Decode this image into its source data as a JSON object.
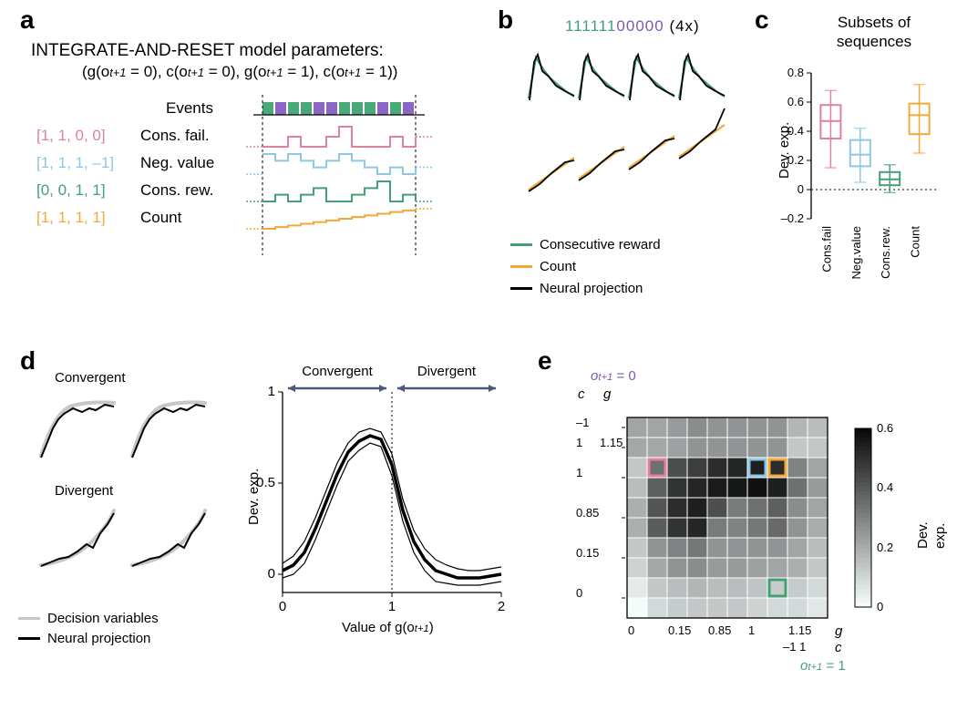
{
  "colors": {
    "pink": "#e0819f",
    "blue": "#8ec6e3",
    "green": "#459e76",
    "orange": "#f1a938",
    "purple": "#7c59b3",
    "eventGreen": "#4aa97a",
    "eventPurple": "#8a66c7",
    "black": "#000000",
    "gray": "#c7c7c7",
    "arrowBlue": "#4a5a78",
    "heatLight": "#f5fbfb",
    "heatDark": "#0a0a0a"
  },
  "panelA": {
    "label": "a",
    "title": "INTEGRATE-AND-RESET model parameters:",
    "subtitle_italic_parts": [
      "(g(o",
      "t+1",
      " = 0), c(o",
      "t+1",
      " = 0), g(o",
      "t+1",
      " = 1), c(o",
      "t+1",
      " = 1))"
    ],
    "rows": [
      {
        "params": "[1, 1, 0, 0]",
        "name": "Cons. fail.",
        "color": "#e0819f"
      },
      {
        "params": "[1, 1, 1, –1]",
        "name": "Neg. value",
        "color": "#8ec6e3"
      },
      {
        "params": "[0, 0, 1, 1]",
        "name": "Cons. rew.",
        "color": "#459e76"
      },
      {
        "params": "[1, 1, 1, 1]",
        "name": "Count",
        "color": "#f1a938"
      }
    ],
    "eventsLabel": "Events",
    "events": [
      1,
      0,
      1,
      1,
      0,
      0,
      1,
      1,
      1,
      0,
      1,
      0
    ]
  },
  "panelB": {
    "label": "b",
    "seq_green": "111111",
    "seq_purple": "00000",
    "seq_suffix": "(4x)",
    "legend": [
      {
        "label": "Consecutive reward",
        "color": "#459e76"
      },
      {
        "label": "Count",
        "color": "#f1a938"
      },
      {
        "label": "Neural projection",
        "color": "#000000"
      }
    ]
  },
  "panelC": {
    "label": "c",
    "title": "Subsets of sequences",
    "ylabel": "Dev. exp.",
    "yticks": [
      "–0.2",
      "0",
      "0.2",
      "0.4",
      "0.6",
      "0.8"
    ],
    "categories": [
      "Cons.fail",
      "Neg.value",
      "Cons.rew.",
      "Count"
    ],
    "boxes": [
      {
        "color": "#e0819f",
        "q1": 0.35,
        "median": 0.47,
        "q3": 0.58,
        "wlo": 0.15,
        "whi": 0.68
      },
      {
        "color": "#8ec6e3",
        "q1": 0.16,
        "median": 0.24,
        "q3": 0.34,
        "wlo": 0.05,
        "whi": 0.42
      },
      {
        "color": "#459e76",
        "q1": 0.03,
        "median": 0.07,
        "q3": 0.12,
        "wlo": -0.02,
        "whi": 0.17
      },
      {
        "color": "#f1a938",
        "q1": 0.38,
        "median": 0.51,
        "q3": 0.59,
        "wlo": 0.25,
        "whi": 0.72
      }
    ],
    "ymin": -0.2,
    "ymax": 0.8
  },
  "panelD": {
    "label": "d",
    "labelConv": "Convergent",
    "labelDiv": "Divergent",
    "legend": [
      {
        "label": "Decision variables",
        "color": "#c7c7c7"
      },
      {
        "label": "Neural projection",
        "color": "#000000"
      }
    ],
    "chart": {
      "xlabel_parts": [
        "Value of g(o",
        "t+1",
        ")"
      ],
      "ylabel": "Dev. exp.",
      "xticks": [
        "0",
        "1",
        "2"
      ],
      "yticks": [
        "0",
        "0.5",
        "1"
      ],
      "convLabel": "Convergent",
      "divLabel": "Divergent",
      "mean": [
        [
          0.0,
          0.02
        ],
        [
          0.1,
          0.05
        ],
        [
          0.2,
          0.12
        ],
        [
          0.3,
          0.25
        ],
        [
          0.4,
          0.4
        ],
        [
          0.5,
          0.55
        ],
        [
          0.6,
          0.67
        ],
        [
          0.7,
          0.73
        ],
        [
          0.8,
          0.76
        ],
        [
          0.9,
          0.74
        ],
        [
          1.0,
          0.6
        ],
        [
          1.1,
          0.35
        ],
        [
          1.2,
          0.18
        ],
        [
          1.3,
          0.08
        ],
        [
          1.4,
          0.02
        ],
        [
          1.5,
          0.0
        ],
        [
          1.6,
          -0.02
        ],
        [
          1.7,
          -0.02
        ],
        [
          1.8,
          -0.02
        ],
        [
          1.9,
          -0.01
        ],
        [
          2.0,
          0.0
        ]
      ],
      "upper": [
        [
          0.0,
          0.06
        ],
        [
          0.1,
          0.1
        ],
        [
          0.2,
          0.18
        ],
        [
          0.3,
          0.31
        ],
        [
          0.4,
          0.46
        ],
        [
          0.5,
          0.61
        ],
        [
          0.6,
          0.72
        ],
        [
          0.7,
          0.78
        ],
        [
          0.8,
          0.8
        ],
        [
          0.9,
          0.78
        ],
        [
          1.0,
          0.66
        ],
        [
          1.1,
          0.41
        ],
        [
          1.2,
          0.24
        ],
        [
          1.3,
          0.14
        ],
        [
          1.4,
          0.08
        ],
        [
          1.5,
          0.05
        ],
        [
          1.6,
          0.03
        ],
        [
          1.7,
          0.02
        ],
        [
          1.8,
          0.02
        ],
        [
          1.9,
          0.03
        ],
        [
          2.0,
          0.04
        ]
      ],
      "lower": [
        [
          0.0,
          -0.02
        ],
        [
          0.1,
          0.0
        ],
        [
          0.2,
          0.06
        ],
        [
          0.3,
          0.19
        ],
        [
          0.4,
          0.34
        ],
        [
          0.5,
          0.49
        ],
        [
          0.6,
          0.62
        ],
        [
          0.7,
          0.68
        ],
        [
          0.8,
          0.72
        ],
        [
          0.9,
          0.7
        ],
        [
          1.0,
          0.54
        ],
        [
          1.1,
          0.29
        ],
        [
          1.2,
          0.12
        ],
        [
          1.3,
          0.02
        ],
        [
          1.4,
          -0.04
        ],
        [
          1.5,
          -0.05
        ],
        [
          1.6,
          -0.06
        ],
        [
          1.7,
          -0.06
        ],
        [
          1.8,
          -0.06
        ],
        [
          1.9,
          -0.05
        ],
        [
          2.0,
          -0.04
        ]
      ]
    }
  },
  "panelE": {
    "label": "e",
    "barLabel": "Dev. exp.",
    "barTicks": [
      "0.6",
      "0.4",
      "0.2",
      "0"
    ],
    "topLabel_o": "o",
    "topLabel_sub": "t+1",
    "topLabel_eq": " = 0",
    "bottomLabel_eq": " = 1",
    "axisLabels": {
      "c": "c",
      "g": "g"
    },
    "leftTicks_c": [
      "–1",
      "1",
      "",
      "1",
      "",
      "0.85",
      "",
      "0.15",
      "",
      "0"
    ],
    "leftTicks_g": [
      "1.15"
    ],
    "bottomTicks_g": [
      "0",
      "0.15",
      "0.85",
      "1",
      "1.15"
    ],
    "bottomTicks_c": [
      "–1",
      "1"
    ],
    "n": 10,
    "heat": [
      [
        0.25,
        0.25,
        0.28,
        0.32,
        0.3,
        0.3,
        0.3,
        0.3,
        0.2,
        0.18
      ],
      [
        0.24,
        0.24,
        0.26,
        0.3,
        0.3,
        0.3,
        0.3,
        0.3,
        0.15,
        0.15
      ],
      [
        0.15,
        0.4,
        0.5,
        0.55,
        0.6,
        0.62,
        0.64,
        0.6,
        0.35,
        0.25
      ],
      [
        0.18,
        0.45,
        0.58,
        0.62,
        0.65,
        0.66,
        0.68,
        0.64,
        0.4,
        0.28
      ],
      [
        0.22,
        0.48,
        0.6,
        0.64,
        0.5,
        0.37,
        0.4,
        0.45,
        0.32,
        0.25
      ],
      [
        0.22,
        0.46,
        0.58,
        0.62,
        0.37,
        0.35,
        0.38,
        0.42,
        0.3,
        0.23
      ],
      [
        0.15,
        0.3,
        0.35,
        0.38,
        0.3,
        0.3,
        0.3,
        0.3,
        0.25,
        0.18
      ],
      [
        0.12,
        0.24,
        0.3,
        0.32,
        0.28,
        0.28,
        0.26,
        0.25,
        0.22,
        0.15
      ],
      [
        0.05,
        0.15,
        0.18,
        0.2,
        0.18,
        0.18,
        0.16,
        0.14,
        0.14,
        0.1
      ],
      [
        0.0,
        0.1,
        0.14,
        0.15,
        0.15,
        0.15,
        0.12,
        0.1,
        0.1,
        0.06
      ]
    ],
    "markers": [
      {
        "color": "#e0819f",
        "row": 2,
        "col": 1
      },
      {
        "color": "#8ec6e3",
        "row": 2,
        "col": 6
      },
      {
        "color": "#f1a938",
        "row": 2,
        "col": 7
      },
      {
        "color": "#459e76",
        "row": 8,
        "col": 7
      }
    ]
  },
  "fonts": {
    "panelLabel": 28,
    "title": 19,
    "normal": 17,
    "small": 15,
    "tiny": 13
  }
}
